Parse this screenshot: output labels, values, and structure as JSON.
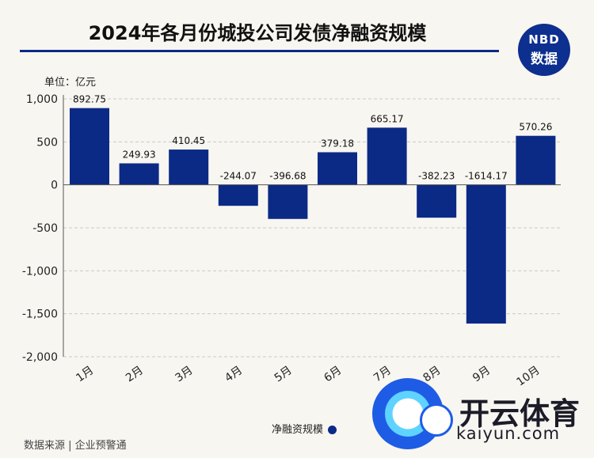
{
  "header": {
    "title": "2024年各月份城投公司发债净融资规模",
    "logo_line1": "NBD",
    "logo_line2": "数据"
  },
  "unit_label": "单位：亿元",
  "legend": {
    "label": "净融资规模"
  },
  "source": "数据来源 | 企业预警通",
  "badge": {
    "name": "开云体育",
    "domain": "kaiyun.com"
  },
  "chart_data": {
    "type": "bar",
    "title": "2024年各月份城投公司发债净融资规模",
    "ylabel": "单位：亿元",
    "ylim": [
      -2000,
      1000
    ],
    "yticks": [
      1000,
      500,
      0,
      -500,
      -1000,
      -1500,
      -2000
    ],
    "ytick_labels": [
      "1,000",
      "500",
      "0",
      "-500",
      "-1,000",
      "-1,500",
      "-2,000"
    ],
    "categories": [
      "1月",
      "2月",
      "3月",
      "4月",
      "5月",
      "6月",
      "7月",
      "8月",
      "9月",
      "10月"
    ],
    "series": [
      {
        "name": "净融资规模",
        "color": "#0b2a86",
        "values": [
          892.75,
          249.93,
          410.45,
          -244.07,
          -396.68,
          379.18,
          665.17,
          -382.23,
          -1614.17,
          570.26
        ],
        "labels": [
          "892.75",
          "249.93",
          "410.45",
          "-244.07",
          "-396.68",
          "379.18",
          "665.17",
          "-382.23",
          "-1614.17",
          "570.26"
        ]
      }
    ],
    "grid": true,
    "legend_position": "bottom"
  }
}
